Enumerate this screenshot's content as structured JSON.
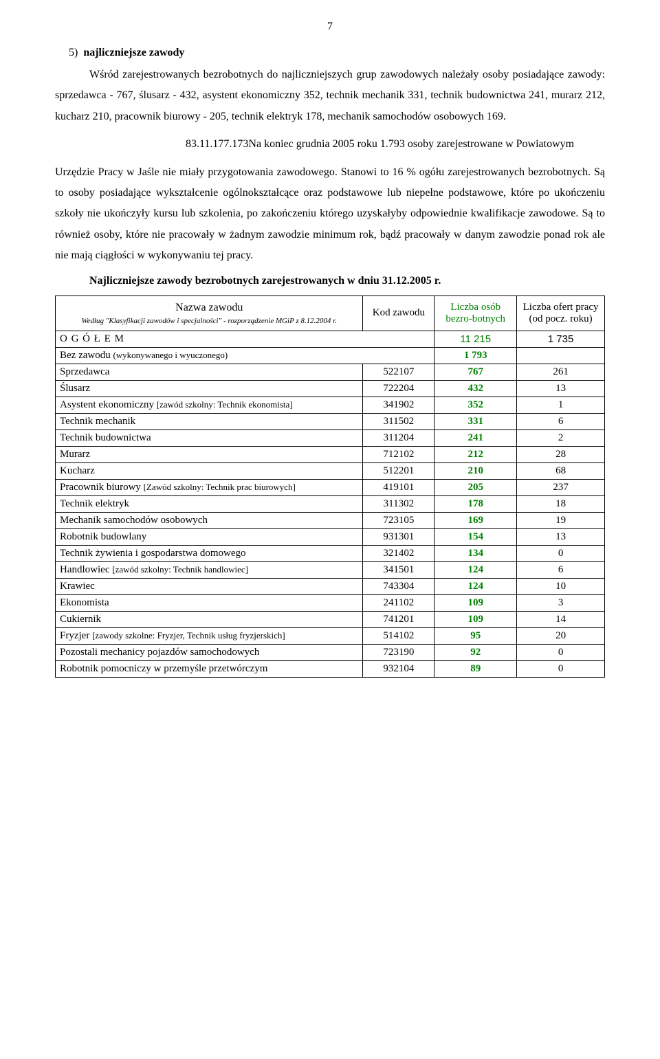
{
  "page_number": "7",
  "section": {
    "number": "5)",
    "title": "najliczniejsze zawody"
  },
  "paragraphs": {
    "p1": "Wśród zarejestrowanych bezrobotnych do najliczniejszych grup zawodowych należały osoby posiadające zawody: sprzedawca - 767, ślusarz - 432, asystent ekonomiczny 352, technik mechanik 331, technik budownictwa 241, murarz 212, kucharz 210, pracownik biurowy - 205, technik elektryk 178, mechanik samochodów osobowych 169.",
    "p2_prefix": "83.11.177.173Na koniec grudnia 2005 roku 1.793 osoby zarejestrowane w Powiatowym",
    "p3": "Urzędzie Pracy w Jaśle nie miały przygotowania zawodowego. Stanowi to 16 % ogółu zarejestrowanych bezrobotnych. Są to osoby posiadające wykształcenie ogólnokształcące oraz podstawowe lub niepełne podstawowe, które po ukończeniu szkoły nie ukończyły kursu lub szkolenia, po zakończeniu którego uzyskałyby odpowiednie kwalifikacje zawodowe. Są to również osoby, które nie pracowały w żadnym zawodzie minimum rok, bądź pracowały w danym zawodzie ponad rok ale nie mają ciągłości w wykonywaniu tej pracy."
  },
  "table_heading": "Najliczniejsze zawody bezrobotnych zarejestrowanych w dniu 31.12.2005 r.",
  "table": {
    "headers": {
      "name_main": "Nazwa zawodu",
      "name_sub": "Według \"Klasyfikacji zawodów i specjalności\" - rozporządzenie MGiP z 8.12.2004 r.",
      "kod": "Kod zawodu",
      "liczba": "Liczba osób bezro-botnych",
      "ofert": "Liczba ofert pracy (od pocz. roku)"
    },
    "ogolem": {
      "label": "O G Ó Ł E M",
      "liczba": "11 215",
      "ofert": "1 735"
    },
    "bez_zawodu": {
      "label": "Bez zawodu ",
      "annotation": "(wykonywanego i wyuczonego)",
      "liczba": "1 793"
    },
    "rows": [
      {
        "name": "Sprzedawca",
        "annotation": "",
        "kod": "522107",
        "liczba": "767",
        "ofert": "261"
      },
      {
        "name": "Ślusarz",
        "annotation": "",
        "kod": "722204",
        "liczba": "432",
        "ofert": "13"
      },
      {
        "name": "Asystent ekonomiczny ",
        "annotation": "[zawód szkolny: Technik ekonomista]",
        "kod": "341902",
        "liczba": "352",
        "ofert": "1"
      },
      {
        "name": "Technik mechanik",
        "annotation": "",
        "kod": "311502",
        "liczba": "331",
        "ofert": "6"
      },
      {
        "name": "Technik budownictwa",
        "annotation": "",
        "kod": "311204",
        "liczba": "241",
        "ofert": "2"
      },
      {
        "name": "Murarz",
        "annotation": "",
        "kod": "712102",
        "liczba": "212",
        "ofert": "28"
      },
      {
        "name": "Kucharz",
        "annotation": "",
        "kod": "512201",
        "liczba": "210",
        "ofert": "68"
      },
      {
        "name": "Pracownik biurowy ",
        "annotation": "[Zawód szkolny: Technik prac biurowych]",
        "kod": "419101",
        "liczba": "205",
        "ofert": "237"
      },
      {
        "name": "Technik elektryk",
        "annotation": "",
        "kod": "311302",
        "liczba": "178",
        "ofert": "18"
      },
      {
        "name": "Mechanik samochodów osobowych",
        "annotation": "",
        "kod": "723105",
        "liczba": "169",
        "ofert": "19"
      },
      {
        "name": "Robotnik budowlany",
        "annotation": "",
        "kod": "931301",
        "liczba": "154",
        "ofert": "13"
      },
      {
        "name": "Technik żywienia i gospodarstwa domowego",
        "annotation": "",
        "kod": "321402",
        "liczba": "134",
        "ofert": "0"
      },
      {
        "name": "Handlowiec ",
        "annotation": "[zawód szkolny: Technik handlowiec]",
        "kod": "341501",
        "liczba": "124",
        "ofert": "6"
      },
      {
        "name": "Krawiec",
        "annotation": "",
        "kod": "743304",
        "liczba": "124",
        "ofert": "10"
      },
      {
        "name": "Ekonomista",
        "annotation": "",
        "kod": "241102",
        "liczba": "109",
        "ofert": "3"
      },
      {
        "name": "Cukiernik",
        "annotation": "",
        "kod": "741201",
        "liczba": "109",
        "ofert": "14"
      },
      {
        "name": "Fryzjer ",
        "annotation": "[zawody szkolne: Fryzjer, Technik usług fryzjerskich]",
        "kod": "514102",
        "liczba": "95",
        "ofert": "20"
      },
      {
        "name": "Pozostali mechanicy pojazdów samochodowych",
        "annotation": "",
        "kod": "723190",
        "liczba": "92",
        "ofert": "0"
      },
      {
        "name": "Robotnik pomocniczy w przemyśle przetwórczym",
        "annotation": "",
        "kod": "932104",
        "liczba": "89",
        "ofert": "0"
      }
    ]
  }
}
